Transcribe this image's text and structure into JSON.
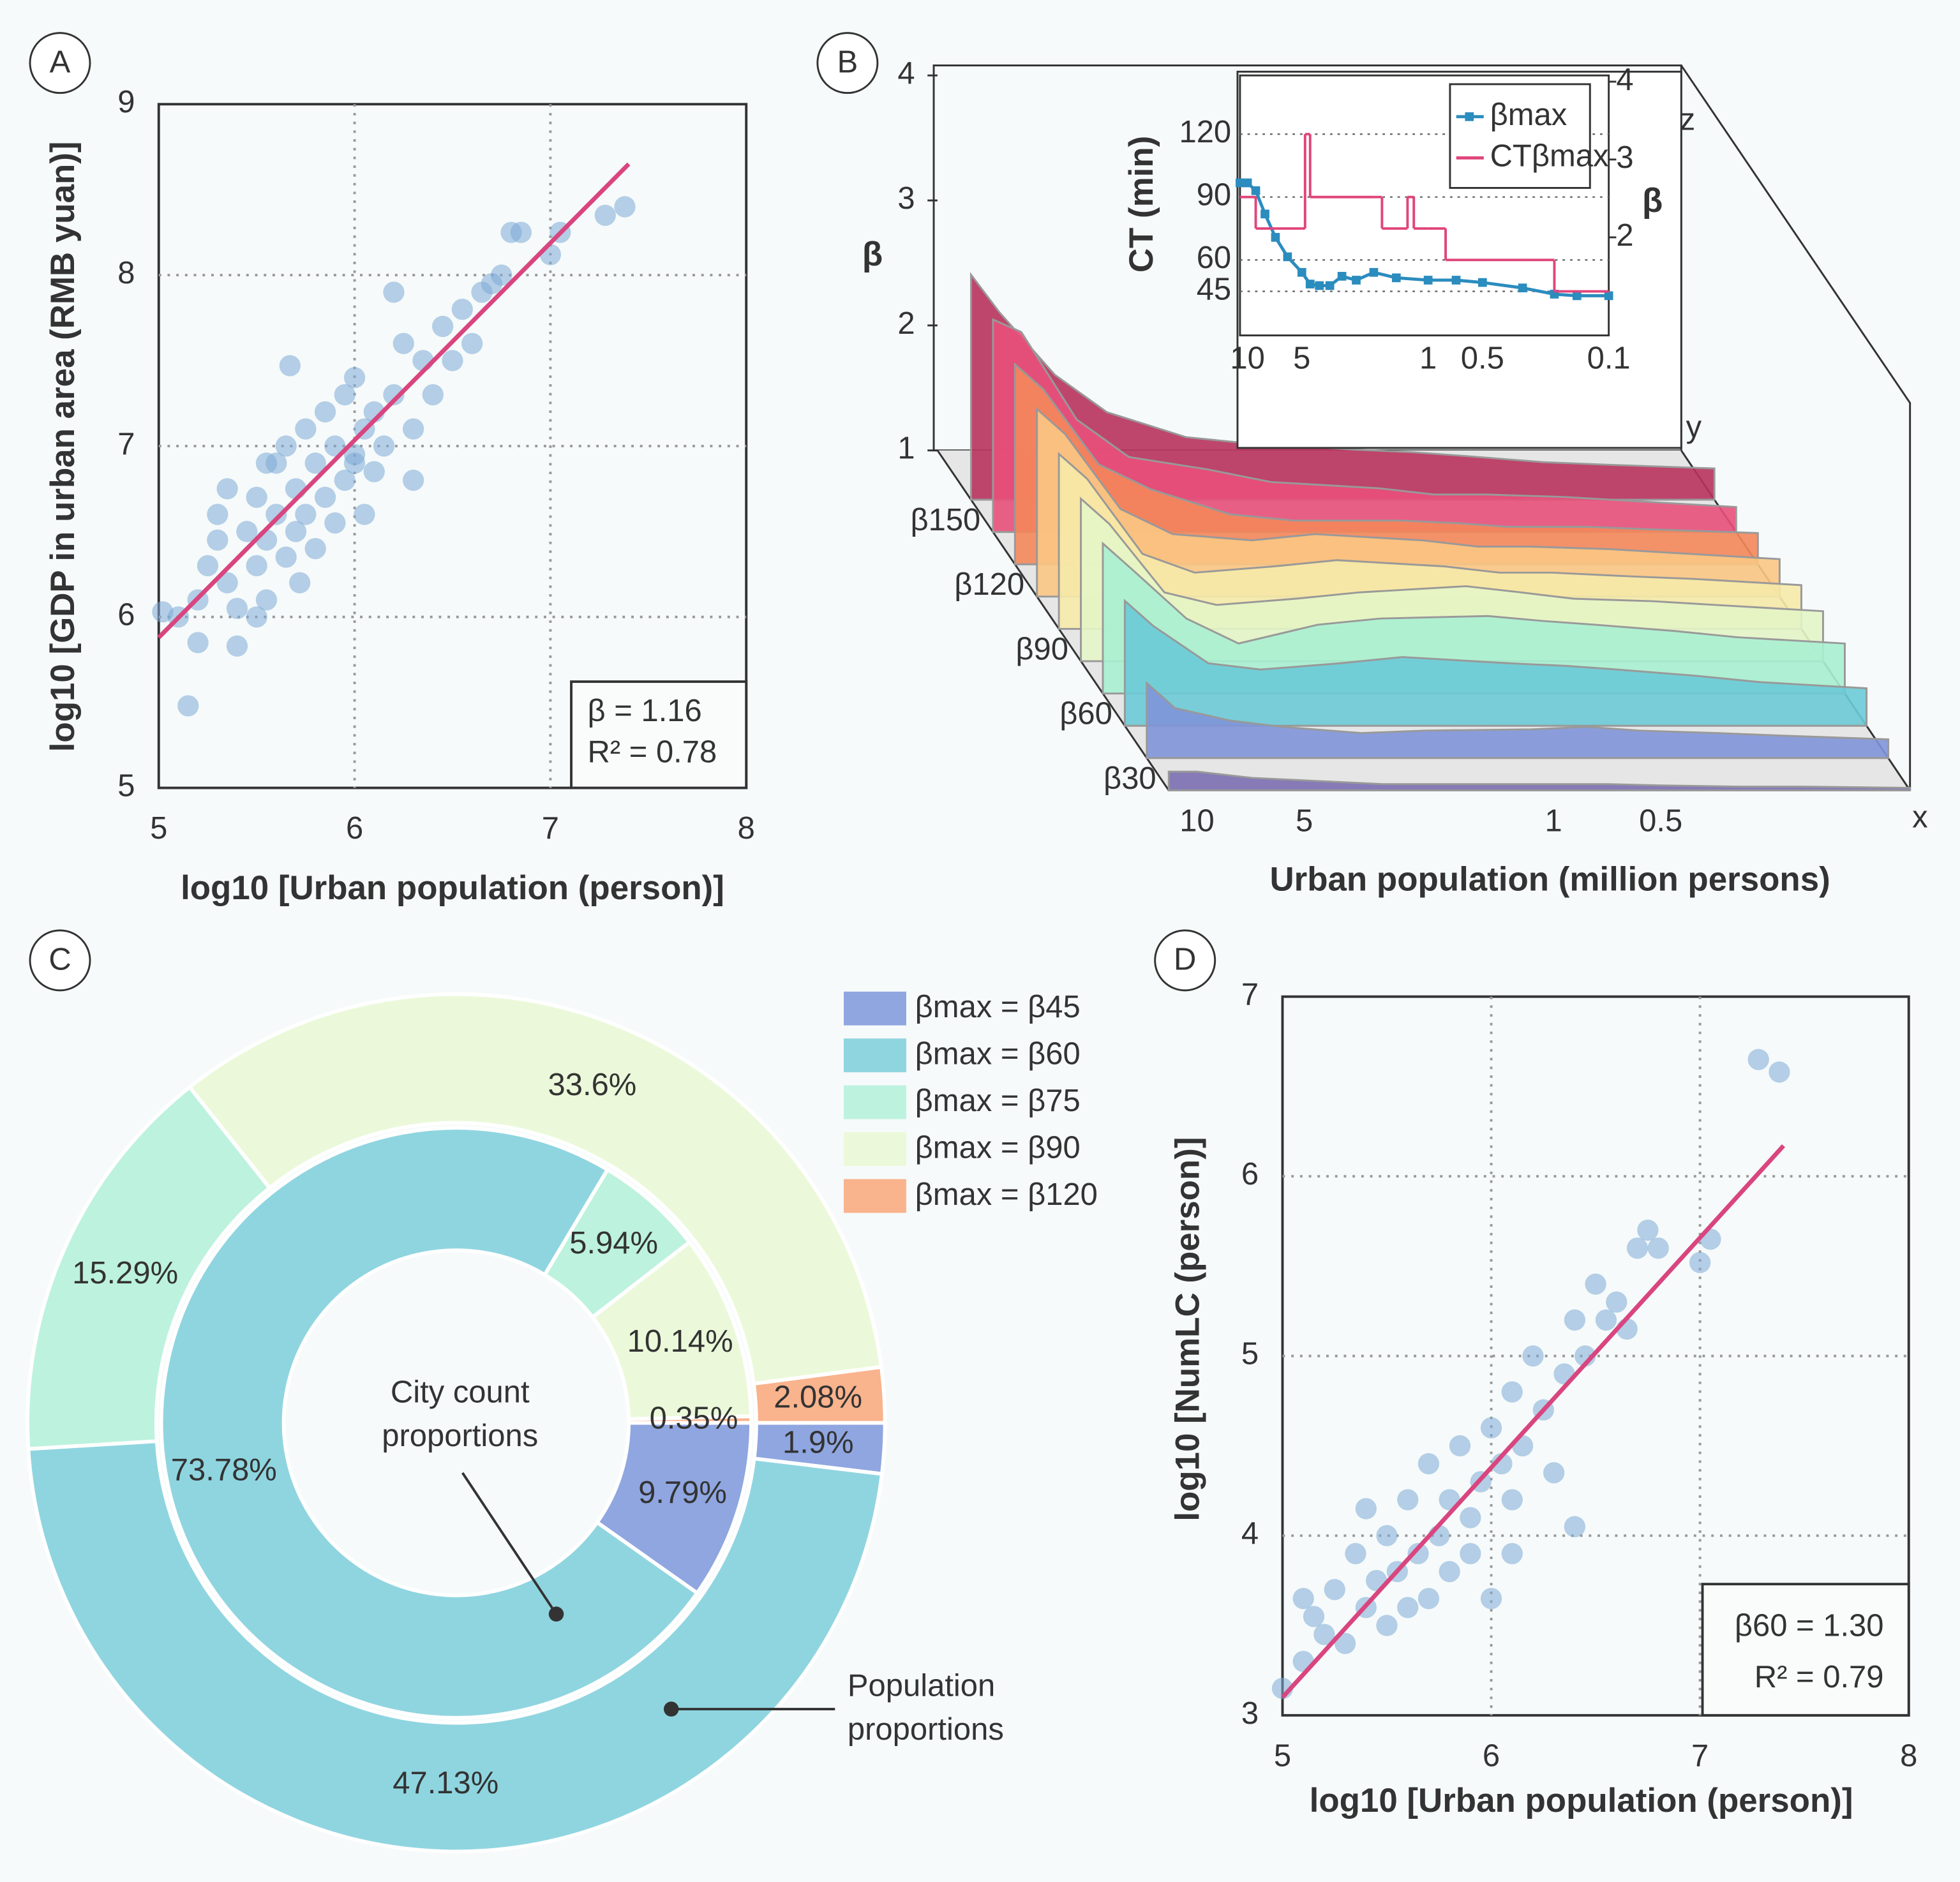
{
  "chart_data": [
    {
      "type": "scatter",
      "panel": "A",
      "x_label": "log10 [Urban population (person)]",
      "y_label": "log10 [GDP in urban area (RMB yuan)]",
      "xlim": [
        5,
        8
      ],
      "ylim": [
        5,
        9
      ],
      "xticks": [
        5,
        6,
        7,
        8
      ],
      "yticks": [
        5,
        6,
        7,
        8,
        9
      ],
      "grid": true,
      "color": "#7ba9d6",
      "x": [
        5.02,
        5.15,
        5.1,
        5.2,
        5.2,
        5.25,
        5.3,
        5.3,
        5.35,
        5.4,
        5.4,
        5.45,
        5.5,
        5.5,
        5.55,
        5.55,
        5.6,
        5.6,
        5.65,
        5.65,
        5.7,
        5.7,
        5.72,
        5.75,
        5.75,
        5.8,
        5.8,
        5.85,
        5.85,
        5.9,
        5.9,
        5.95,
        5.95,
        6.0,
        6.0,
        6.05,
        6.05,
        6.1,
        6.1,
        6.15,
        6.2,
        6.2,
        6.25,
        6.3,
        6.35,
        6.4,
        6.45,
        6.5,
        6.55,
        6.6,
        6.65,
        6.7,
        6.75,
        6.8,
        6.85,
        7.0,
        7.05,
        7.28,
        7.38,
        5.67,
        5.55,
        6.0,
        5.5,
        5.35,
        6.3
      ],
      "values": [
        6.03,
        5.48,
        6.0,
        5.85,
        6.1,
        6.3,
        6.6,
        6.45,
        6.2,
        6.05,
        5.83,
        6.5,
        6.3,
        6.7,
        6.45,
        6.1,
        6.6,
        6.9,
        6.35,
        7.0,
        6.5,
        6.75,
        6.2,
        7.1,
        6.6,
        6.9,
        6.4,
        7.2,
        6.7,
        6.55,
        7.0,
        6.8,
        7.3,
        6.9,
        7.4,
        7.1,
        6.6,
        7.2,
        6.85,
        7.0,
        7.3,
        7.9,
        7.6,
        7.1,
        7.5,
        7.3,
        7.7,
        7.5,
        7.8,
        7.6,
        7.9,
        7.95,
        8.0,
        8.25,
        8.25,
        8.12,
        8.25,
        8.35,
        8.4,
        7.47,
        6.9,
        6.95,
        6.0,
        6.75,
        6.8
      ],
      "fit": {
        "color": "#d9457f",
        "x": [
          5,
          7.4
        ],
        "values": [
          5.88,
          8.65
        ]
      },
      "annotations": [
        "β = 1.16",
        "R² = 0.78"
      ]
    },
    {
      "type": "ridge3d",
      "panel": "B",
      "x_label": "Urban population (million persons)",
      "z_label": "β",
      "axis_names": {
        "x": "x",
        "y": "y",
        "z": "z"
      },
      "x_log": true,
      "xlim": [
        12,
        0.1
      ],
      "xticks": [
        10,
        5,
        1,
        0.5
      ],
      "zlim": [
        1,
        4
      ],
      "zticks": [
        1,
        2,
        3,
        4
      ],
      "x": [
        12,
        10,
        7,
        5,
        3,
        2,
        1,
        0.7,
        0.5,
        0.3,
        0.2,
        0.1
      ],
      "categories": [
        "β30",
        null,
        "β60",
        null,
        "β90",
        null,
        "β120",
        null,
        "β150",
        null
      ],
      "series": [
        {
          "color": "#7b6fb0",
          "values": [
            1.15,
            1.15,
            1.1,
            1.08,
            1.05,
            1.05,
            1.05,
            1.05,
            1.04,
            1.03,
            1.03,
            1.02
          ]
        },
        {
          "color": "#7f95d8",
          "values": [
            1.6,
            1.4,
            1.3,
            1.25,
            1.2,
            1.22,
            1.23,
            1.25,
            1.22,
            1.2,
            1.18,
            1.15
          ]
        },
        {
          "color": "#6ccad6",
          "values": [
            2.0,
            1.8,
            1.5,
            1.45,
            1.5,
            1.55,
            1.5,
            1.48,
            1.45,
            1.4,
            1.35,
            1.3
          ]
        },
        {
          "color": "#a8efd2",
          "values": [
            2.2,
            2.0,
            1.6,
            1.4,
            1.55,
            1.6,
            1.62,
            1.58,
            1.55,
            1.5,
            1.45,
            1.4
          ]
        },
        {
          "color": "#e4f5c6",
          "values": [
            2.3,
            2.1,
            1.55,
            1.45,
            1.5,
            1.55,
            1.6,
            1.55,
            1.5,
            1.48,
            1.45,
            1.4
          ]
        },
        {
          "color": "#f6eaa8",
          "values": [
            2.4,
            2.2,
            1.6,
            1.45,
            1.5,
            1.55,
            1.5,
            1.45,
            1.45,
            1.42,
            1.4,
            1.35
          ]
        },
        {
          "color": "#fbc683",
          "values": [
            2.5,
            2.3,
            1.7,
            1.5,
            1.45,
            1.5,
            1.45,
            1.4,
            1.4,
            1.38,
            1.35,
            1.3
          ]
        },
        {
          "color": "#f4875b",
          "values": [
            2.6,
            2.4,
            1.8,
            1.6,
            1.4,
            1.35,
            1.35,
            1.33,
            1.3,
            1.3,
            1.28,
            1.25
          ]
        },
        {
          "color": "#e8507a",
          "values": [
            2.7,
            2.6,
            1.9,
            1.6,
            1.5,
            1.4,
            1.35,
            1.3,
            1.3,
            1.28,
            1.25,
            1.2
          ]
        },
        {
          "color": "#b8325d",
          "values": [
            2.8,
            2.5,
            2.0,
            1.7,
            1.5,
            1.45,
            1.4,
            1.38,
            1.35,
            1.3,
            1.28,
            1.25
          ]
        }
      ]
    },
    {
      "type": "line",
      "x_log": true,
      "y_label": "CT (min)",
      "y2_label": "β",
      "xlim": [
        11,
        0.1
      ],
      "xticks": [
        10,
        5,
        1,
        0.5,
        0.1
      ],
      "ylim": [
        24,
        148
      ],
      "yticks": [
        45,
        60,
        90,
        120
      ],
      "y2lim": [
        0.74,
        4.08
      ],
      "y2ticks": [
        2,
        3,
        4
      ],
      "series": [
        {
          "name": "βmax",
          "color": "#2b8cbe",
          "axis": "y2",
          "x": [
            11,
            10,
            9,
            8,
            7,
            6,
            5,
            4.5,
            4,
            3.5,
            3,
            2.5,
            2,
            1.5,
            1,
            0.7,
            0.5,
            0.3,
            0.2,
            0.15,
            0.1
          ],
          "values": [
            2.7,
            2.7,
            2.6,
            2.3,
            2.0,
            1.75,
            1.55,
            1.4,
            1.38,
            1.38,
            1.5,
            1.45,
            1.55,
            1.48,
            1.45,
            1.45,
            1.42,
            1.35,
            1.27,
            1.25,
            1.25
          ]
        },
        {
          "name": "CTβmax",
          "color": "#e0457b",
          "step": true,
          "x": [
            11,
            10,
            9,
            7,
            5,
            4.8,
            4.5,
            2,
            1.8,
            1.3,
            1.2,
            1,
            0.8,
            0.3,
            0.2,
            0.1
          ],
          "values": [
            90,
            90,
            75,
            75,
            75,
            120,
            90,
            90,
            75,
            90,
            75,
            75,
            60,
            60,
            45,
            45
          ]
        }
      ]
    },
    {
      "type": "donut",
      "panel": "C",
      "series": [
        {
          "name": "βmax = β45",
          "color": "#8fa6e0"
        },
        {
          "name": "βmax = β60",
          "color": "#8fd5e0"
        },
        {
          "name": "βmax = β75",
          "color": "#bdf2de"
        },
        {
          "name": "βmax = β90",
          "color": "#ebf9da"
        },
        {
          "name": "βmax = β120",
          "color": "#f9b38d"
        }
      ],
      "rings": [
        {
          "label": [
            "City count",
            "proportions"
          ],
          "values": [
            9.79,
            73.78,
            5.94,
            10.14,
            0.35
          ],
          "value_labels": [
            "9.79%",
            "73.78%",
            "5.94%",
            "10.14%",
            "0.35%"
          ]
        },
        {
          "label": [
            "Population",
            "proportions"
          ],
          "values": [
            1.9,
            47.13,
            15.29,
            33.6,
            2.08
          ],
          "value_labels": [
            "1.9%",
            "47.13%",
            "15.29%",
            "33.6%",
            "2.08%"
          ]
        }
      ]
    },
    {
      "type": "scatter",
      "panel": "D",
      "x_label": "log10 [Urban population (person)]",
      "y_label": "log10 [NumLC (person)]",
      "xlim": [
        5,
        8
      ],
      "ylim": [
        3,
        7
      ],
      "xticks": [
        5,
        6,
        7,
        8
      ],
      "yticks": [
        3,
        4,
        5,
        6,
        7
      ],
      "grid": true,
      "color": "#7ba9d6",
      "x": [
        5.0,
        5.1,
        5.15,
        5.2,
        5.25,
        5.3,
        5.35,
        5.4,
        5.45,
        5.5,
        5.5,
        5.55,
        5.6,
        5.6,
        5.65,
        5.7,
        5.7,
        5.75,
        5.8,
        5.8,
        5.85,
        5.9,
        5.9,
        5.95,
        6.0,
        6.0,
        6.05,
        6.1,
        6.1,
        6.15,
        6.2,
        6.25,
        6.3,
        6.35,
        6.4,
        6.45,
        6.5,
        6.55,
        6.6,
        6.65,
        6.7,
        6.75,
        6.8,
        7.05,
        7.0,
        7.28,
        7.38,
        5.4,
        6.4,
        5.1,
        6.1
      ],
      "values": [
        3.15,
        3.3,
        3.55,
        3.45,
        3.7,
        3.4,
        3.9,
        3.6,
        3.75,
        3.5,
        4.0,
        3.8,
        3.6,
        4.2,
        3.9,
        3.65,
        4.4,
        4.0,
        3.8,
        4.2,
        4.5,
        4.1,
        3.9,
        4.3,
        4.6,
        3.65,
        4.4,
        4.8,
        4.2,
        4.5,
        5.0,
        4.7,
        4.35,
        4.9,
        5.2,
        5.0,
        5.4,
        5.2,
        5.3,
        5.15,
        5.6,
        5.7,
        5.6,
        5.65,
        5.52,
        6.65,
        6.58,
        4.15,
        4.05,
        3.65,
        3.9
      ],
      "fit": {
        "color": "#d9457f",
        "x": [
          5,
          7.4
        ],
        "values": [
          3.1,
          6.17
        ]
      },
      "annotations": [
        "β60 = 1.30",
        "R² = 0.79"
      ]
    }
  ]
}
